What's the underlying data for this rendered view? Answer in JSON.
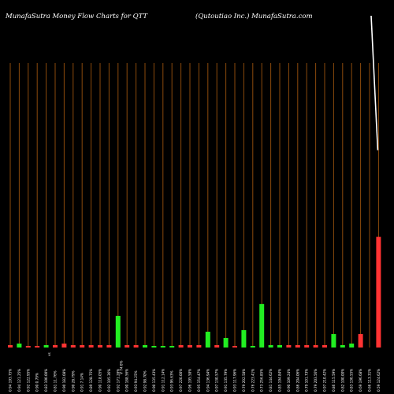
{
  "chart_data": {
    "type": "bar",
    "title": "MunafaSutra  Money Flow  Charts for QTT",
    "subtitle": "(Qutoutiao  Inc.) MunafaSutra.com",
    "categories": [
      "0.94 193.75%",
      "0.94 121.25%",
      "0.92 122.95%",
      "0.90 0.79%",
      "0.83 100.00%",
      "0.81 11.76%",
      "0.90 182.08%",
      "0.90 28.79%",
      "0.91 7.14%",
      "0.89 128.75%",
      "0.90 118.05%",
      "0.92 105.36%",
      "0.92 171.28%",
      "0.90 188.56%",
      "0.93 94.25%",
      "0.92 98.70%",
      "0.90 135.43%",
      "0.91 112.14%",
      "0.93 96.63%",
      "0.97 220.00%",
      "0.96 195.58%",
      "0.95 154.47%",
      "0.94 136.94%",
      "0.97 130.57%",
      "0.91 135.79%",
      "0.93 117.96%",
      "0.79 202.58%",
      "0.76 223.41%",
      "0.73 256.85%",
      "0.81 144.62%",
      "0.85 194.84%",
      "0.90 109.24%",
      "0.86 204.06%",
      "0.79 101.73%",
      "0.79 203.56%",
      "0.97 210.42%",
      "0.86 115.59%",
      "0.82 100.00%",
      "0.83 130.55%",
      "0.69 196.68%",
      "0.66 113.31%",
      "0.59 124.62%"
    ],
    "x_extra_labels": [
      "vs",
      "V 74.6%"
    ],
    "series": [
      {
        "values": [
          3,
          5,
          2,
          2,
          3,
          3,
          5,
          3,
          3,
          3,
          3,
          3,
          40,
          3,
          3,
          3,
          2,
          2,
          2,
          3,
          3,
          3,
          20,
          3,
          12,
          2,
          22,
          2,
          55,
          3,
          3,
          3,
          3,
          3,
          3,
          3,
          17,
          3,
          5,
          17,
          0,
          140
        ],
        "colors": [
          "#ff3333",
          "#22ee22",
          "#ff3333",
          "#ff3333",
          "#22ee22",
          "#ff3333",
          "#ff3333",
          "#ff3333",
          "#ff3333",
          "#ff3333",
          "#ff3333",
          "#ff3333",
          "#22ee22",
          "#ff3333",
          "#ff3333",
          "#22ee22",
          "#22ee22",
          "#22ee22",
          "#22ee22",
          "#ff3333",
          "#ff3333",
          "#ff3333",
          "#22ee22",
          "#ff3333",
          "#22ee22",
          "#ff3333",
          "#22ee22",
          "#22ee22",
          "#22ee22",
          "#22ee22",
          "#22ee22",
          "#ff3333",
          "#ff3333",
          "#ff3333",
          "#ff3333",
          "#ff3333",
          "#22ee22",
          "#22ee22",
          "#22ee22",
          "#ff3333",
          "#ff3333",
          "#ff3333"
        ]
      }
    ],
    "price_line": {
      "color": "#ffffff",
      "points": [
        [
          40,
          0
        ],
        [
          41,
          190
        ]
      ]
    },
    "ylim": [
      0,
      360
    ],
    "grid": true,
    "grid_color": "#8b4a0c",
    "background": "#000000"
  }
}
